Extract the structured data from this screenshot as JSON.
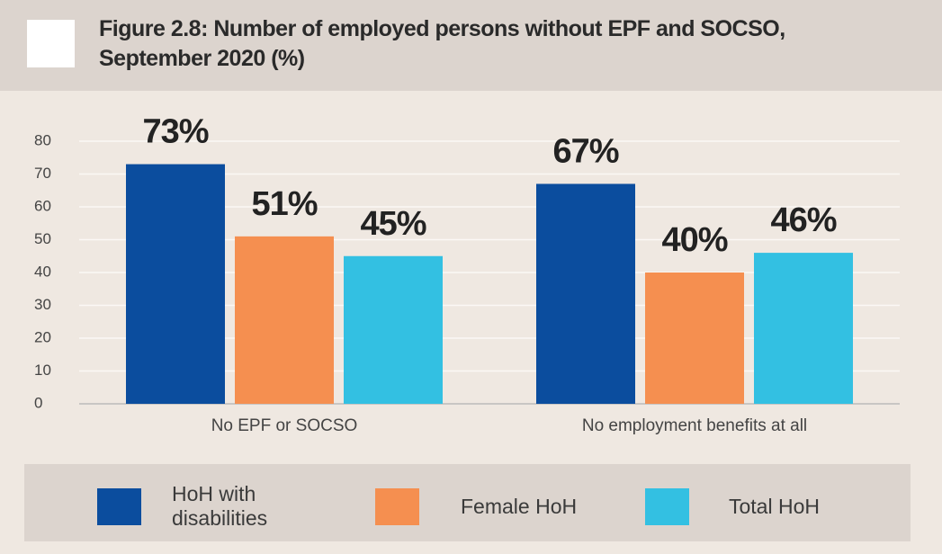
{
  "chart_data": {
    "type": "bar",
    "title": "Figure 2.8: Number of employed persons without EPF and SOCSO, September 2020 (%)",
    "categories": [
      "No EPF or SOCSO",
      "No employment benefits at all"
    ],
    "series": [
      {
        "name": "HoH with disabilities",
        "color": "#0b4d9e",
        "values": [
          73,
          67
        ],
        "value_labels": [
          "73%",
          "67%"
        ]
      },
      {
        "name": "Female HoH",
        "color": "#f58f50",
        "values": [
          51,
          40
        ],
        "value_labels": [
          "51%",
          "40%"
        ]
      },
      {
        "name": "Total HoH",
        "color": "#33c0e2",
        "values": [
          45,
          46
        ],
        "value_labels": [
          "45%",
          "46%"
        ]
      }
    ],
    "ylim": [
      0,
      80
    ],
    "yticks": [
      0,
      10,
      20,
      30,
      40,
      50,
      60,
      70,
      80
    ],
    "grid": true,
    "legend": "bottom"
  }
}
